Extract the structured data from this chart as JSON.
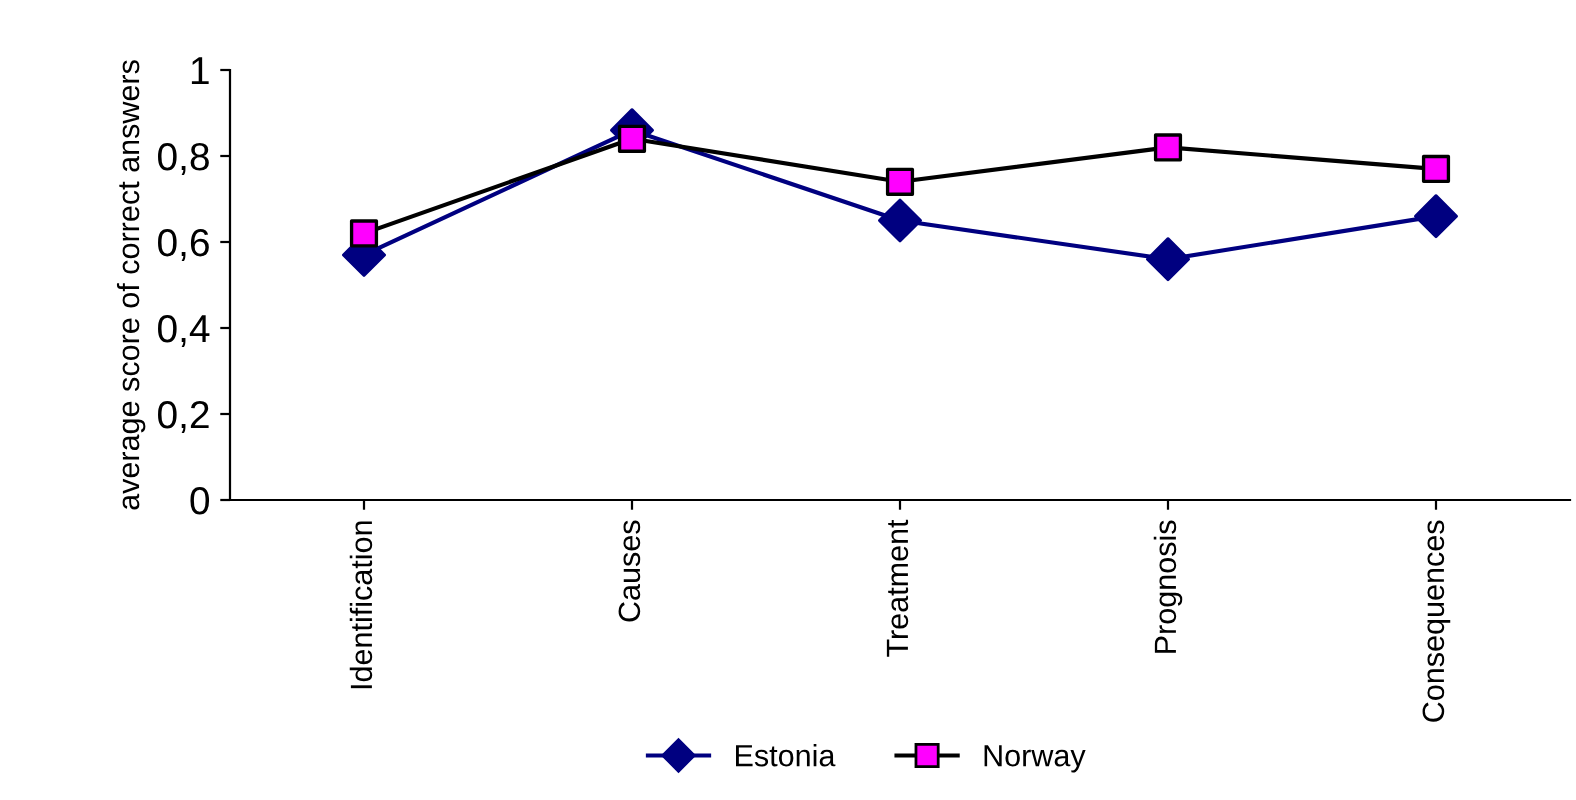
{
  "chart_data": {
    "type": "line",
    "ylabel": "average score of correct answers",
    "categories": [
      "Identification",
      "Causes",
      "Treatment",
      "Prognosis",
      "Consequences"
    ],
    "series": [
      {
        "name": "Estonia",
        "color": "#000080",
        "marker": "diamond",
        "values": [
          0.57,
          0.86,
          0.65,
          0.56,
          0.66
        ]
      },
      {
        "name": "Norway",
        "color": "#000000",
        "colors": [
          "#ff00ff",
          "#ff00ff",
          "#ff00ff",
          "#ff00ff",
          "#ff00ff"
        ],
        "marker": "square",
        "values": [
          0.62,
          0.84,
          0.74,
          0.82,
          0.77
        ]
      }
    ],
    "ylim": [
      0,
      1
    ],
    "yticks": [
      0,
      {
        "value": 0.2,
        "label": "0,2"
      },
      {
        "value": 0.4,
        "label": "0,4"
      },
      {
        "value": 0.6,
        "label": "0,6"
      },
      {
        "value": 0.8,
        "label": "0,8"
      },
      1
    ],
    "grid": false,
    "legend": "bottom"
  }
}
